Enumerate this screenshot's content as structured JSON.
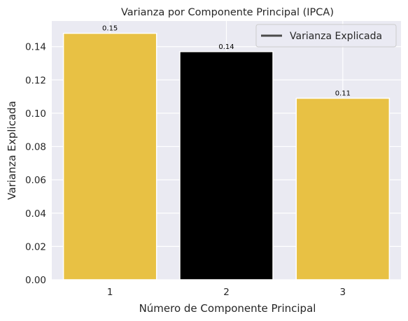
{
  "chart_data": {
    "type": "bar",
    "title": "Varianza por Componente Principal (IPCA)",
    "xlabel": "Número de Componente Principal",
    "ylabel": "Varianza Explicada",
    "categories": [
      "1",
      "2",
      "3"
    ],
    "values": [
      0.148,
      0.137,
      0.109
    ],
    "data_labels": [
      "0.15",
      "0.14",
      "0.11"
    ],
    "bar_colors": [
      "#e8c144",
      "#000000",
      "#e8c144"
    ],
    "yticks": [
      0.0,
      0.02,
      0.04,
      0.06,
      0.08,
      0.1,
      0.12,
      0.14
    ],
    "ytick_labels": [
      "0.00",
      "0.02",
      "0.04",
      "0.06",
      "0.08",
      "0.10",
      "0.12",
      "0.14"
    ],
    "ylim": [
      0,
      0.1554
    ],
    "grid": true,
    "legend": {
      "label": "Varianza Explicada",
      "placement": "top-right",
      "line_color": "#4a4a4a"
    },
    "background_color": "#eaeaf2",
    "grid_color": "#ffffff"
  }
}
